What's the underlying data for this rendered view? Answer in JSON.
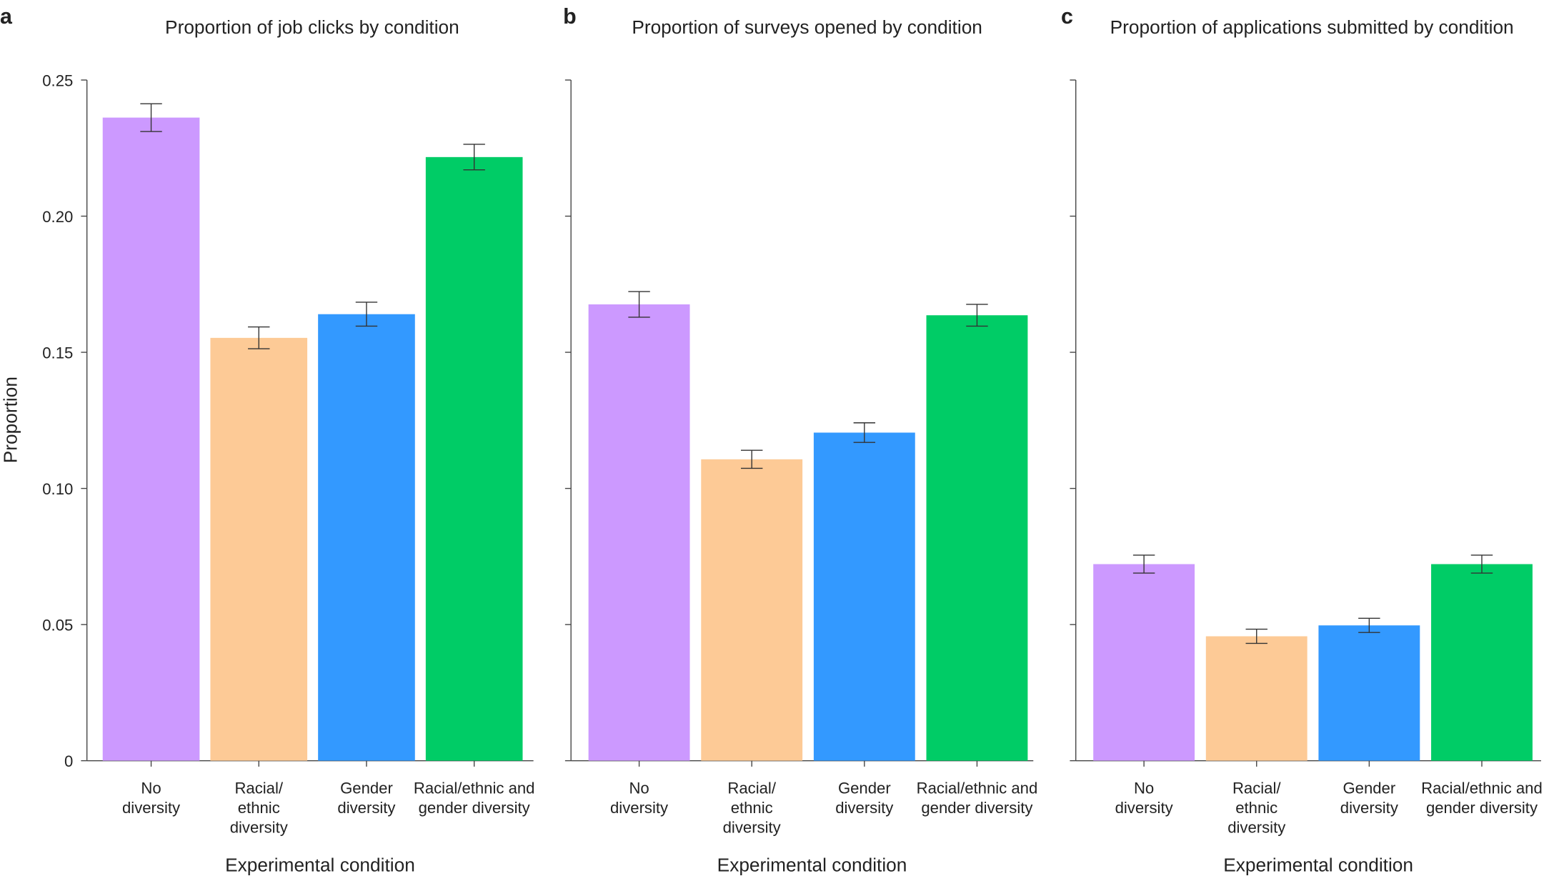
{
  "chart_data": [
    {
      "type": "bar",
      "panel": "a",
      "title": "Proportion of job clicks by condition",
      "xlabel": "Experimental condition",
      "ylabel": "Proportion",
      "categories": [
        [
          "No",
          "diversity"
        ],
        [
          "Racial/",
          "ethnic",
          "diversity"
        ],
        [
          "Gender",
          "diversity"
        ],
        [
          "Racial/ethnic and",
          "gender diversity"
        ]
      ],
      "values": [
        0.2362,
        0.1553,
        0.164,
        0.2217
      ],
      "errors": [
        0.0051,
        0.004,
        0.0044,
        0.0047
      ],
      "colors": [
        "#cc99ff",
        "#fdca96",
        "#3399ff",
        "#00cc66"
      ],
      "ylim": [
        0,
        0.25
      ],
      "yticks": [
        0,
        0.05,
        {
          "value": 0.1,
          "label": "0.10"
        },
        0.15,
        {
          "value": 0.2,
          "label": "0.20"
        },
        0.25
      ]
    },
    {
      "type": "bar",
      "panel": "b",
      "title": "Proportion of surveys opened by condition",
      "xlabel": "Experimental condition",
      "categories": [
        [
          "No",
          "diversity"
        ],
        [
          "Racial/",
          "ethnic",
          "diversity"
        ],
        [
          "Gender",
          "diversity"
        ],
        [
          "Racial/ethnic and",
          "gender diversity"
        ]
      ],
      "values": [
        0.1676,
        0.1107,
        0.1205,
        0.1636
      ],
      "errors": [
        0.0047,
        0.0033,
        0.0036,
        0.004
      ],
      "colors": [
        "#cc99ff",
        "#fdca96",
        "#3399ff",
        "#00cc66"
      ],
      "ylim": [
        0,
        0.25
      ]
    },
    {
      "type": "bar",
      "panel": "c",
      "title": "Proportion of applications submitted by condition",
      "xlabel": "Experimental condition",
      "categories": [
        [
          "No",
          "diversity"
        ],
        [
          "Racial/",
          "ethnic",
          "diversity"
        ],
        [
          "Gender",
          "diversity"
        ],
        [
          "Racial/ethnic and",
          "gender diversity"
        ]
      ],
      "values": [
        0.0722,
        0.0457,
        0.0497,
        0.0722
      ],
      "errors": [
        0.0033,
        0.0026,
        0.0026,
        0.0033
      ],
      "colors": [
        "#cc99ff",
        "#fdca96",
        "#3399ff",
        "#00cc66"
      ],
      "ylim": [
        0,
        0.25
      ]
    }
  ]
}
